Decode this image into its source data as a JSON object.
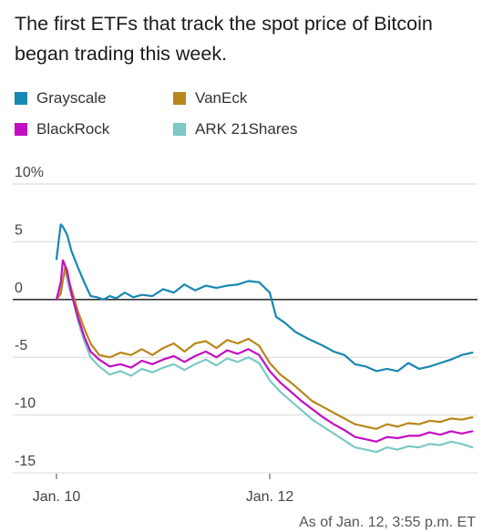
{
  "title": "The first ETFs that track the spot price of Bitcoin began trading this week.",
  "note": "As of Jan. 12, 3:55 p.m. ET",
  "chart_data": {
    "type": "line",
    "title": "The first ETFs that track the spot price of Bitcoin began trading this week.",
    "xlabel": "",
    "ylabel": "",
    "ylim": [
      -15,
      10
    ],
    "y_ticks": [
      {
        "value": 10,
        "label": "10%"
      },
      {
        "value": 5,
        "label": "5"
      },
      {
        "value": 0,
        "label": "0"
      },
      {
        "value": -5,
        "label": "-5"
      },
      {
        "value": -10,
        "label": "-10"
      },
      {
        "value": -15,
        "label": "-15"
      }
    ],
    "x_ticks": [
      {
        "value": 0,
        "label": "Jan. 10"
      },
      {
        "value": 1,
        "label": "Jan. 12"
      }
    ],
    "grid": true,
    "legend_position": "top",
    "series": [
      {
        "name": "Grayscale",
        "color": "#1787b3",
        "x": [
          0.0,
          0.01,
          0.02,
          0.03,
          0.05,
          0.07,
          0.1,
          0.13,
          0.16,
          0.19,
          0.22,
          0.25,
          0.28,
          0.32,
          0.36,
          0.4,
          0.45,
          0.5,
          0.55,
          0.6,
          0.65,
          0.7,
          0.75,
          0.8,
          0.85,
          0.9,
          0.95,
          1.0,
          1.03,
          1.07,
          1.12,
          1.18,
          1.25,
          1.3,
          1.35,
          1.4,
          1.45,
          1.5,
          1.55,
          1.6,
          1.65,
          1.7,
          1.75,
          1.8,
          1.85,
          1.9,
          1.95
        ],
        "y": [
          3.5,
          5.0,
          6.5,
          6.3,
          5.6,
          4.2,
          2.8,
          1.5,
          0.3,
          0.2,
          0.0,
          0.3,
          0.1,
          0.6,
          0.2,
          0.4,
          0.3,
          0.9,
          0.6,
          1.3,
          0.8,
          1.2,
          1.0,
          1.2,
          1.3,
          1.6,
          1.5,
          0.6,
          -1.5,
          -2.0,
          -2.8,
          -3.4,
          -4.0,
          -4.5,
          -4.8,
          -5.6,
          -5.8,
          -6.2,
          -6.0,
          -6.2,
          -5.5,
          -6.0,
          -5.8,
          -5.5,
          -5.2,
          -4.8,
          -4.6
        ]
      },
      {
        "name": "VanEck",
        "color": "#b8861a",
        "x": [
          0.0,
          0.02,
          0.04,
          0.06,
          0.08,
          0.1,
          0.13,
          0.16,
          0.2,
          0.25,
          0.3,
          0.35,
          0.4,
          0.45,
          0.5,
          0.55,
          0.6,
          0.65,
          0.7,
          0.75,
          0.8,
          0.85,
          0.9,
          0.95,
          1.0,
          1.05,
          1.1,
          1.15,
          1.2,
          1.25,
          1.3,
          1.35,
          1.4,
          1.45,
          1.5,
          1.55,
          1.6,
          1.65,
          1.7,
          1.75,
          1.8,
          1.85,
          1.9,
          1.95
        ],
        "y": [
          0.0,
          0.5,
          2.8,
          1.5,
          0.3,
          -1.0,
          -2.5,
          -3.8,
          -4.8,
          -5.0,
          -4.6,
          -4.8,
          -4.3,
          -4.8,
          -4.2,
          -3.8,
          -4.5,
          -3.8,
          -3.6,
          -4.2,
          -3.5,
          -3.8,
          -3.4,
          -4.0,
          -5.5,
          -6.5,
          -7.2,
          -8.0,
          -8.8,
          -9.3,
          -9.8,
          -10.3,
          -10.8,
          -11.0,
          -11.2,
          -10.8,
          -11.0,
          -10.7,
          -10.8,
          -10.5,
          -10.6,
          -10.3,
          -10.4,
          -10.2
        ]
      },
      {
        "name": "BlackRock",
        "color": "#c20dc2",
        "x": [
          0.0,
          0.02,
          0.03,
          0.05,
          0.07,
          0.1,
          0.13,
          0.16,
          0.2,
          0.25,
          0.3,
          0.35,
          0.4,
          0.45,
          0.5,
          0.55,
          0.6,
          0.65,
          0.7,
          0.75,
          0.8,
          0.85,
          0.9,
          0.95,
          1.0,
          1.05,
          1.1,
          1.15,
          1.2,
          1.25,
          1.3,
          1.35,
          1.4,
          1.45,
          1.5,
          1.55,
          1.6,
          1.65,
          1.7,
          1.75,
          1.8,
          1.85,
          1.9,
          1.95
        ],
        "y": [
          0.0,
          1.5,
          3.4,
          2.5,
          0.5,
          -1.5,
          -3.2,
          -4.5,
          -5.2,
          -5.8,
          -5.6,
          -5.9,
          -5.3,
          -5.6,
          -5.2,
          -4.9,
          -5.4,
          -4.9,
          -4.5,
          -5.0,
          -4.4,
          -4.7,
          -4.3,
          -4.8,
          -6.2,
          -7.2,
          -8.0,
          -8.8,
          -9.5,
          -10.2,
          -10.8,
          -11.3,
          -11.9,
          -12.1,
          -12.3,
          -11.9,
          -12.0,
          -11.8,
          -11.8,
          -11.5,
          -11.7,
          -11.4,
          -11.6,
          -11.4
        ]
      },
      {
        "name": "ARK 21Shares",
        "color": "#7cc9c5",
        "x": [
          0.0,
          0.02,
          0.04,
          0.06,
          0.08,
          0.1,
          0.13,
          0.16,
          0.2,
          0.25,
          0.3,
          0.35,
          0.4,
          0.45,
          0.5,
          0.55,
          0.6,
          0.65,
          0.7,
          0.75,
          0.8,
          0.85,
          0.9,
          0.95,
          1.0,
          1.05,
          1.1,
          1.15,
          1.2,
          1.25,
          1.3,
          1.35,
          1.4,
          1.45,
          1.5,
          1.55,
          1.6,
          1.65,
          1.7,
          1.75,
          1.8,
          1.85,
          1.9,
          1.95
        ],
        "y": [
          0.0,
          1.0,
          2.5,
          1.0,
          -0.2,
          -1.8,
          -3.6,
          -5.0,
          -5.8,
          -6.5,
          -6.2,
          -6.6,
          -6.0,
          -6.3,
          -5.9,
          -5.6,
          -6.1,
          -5.6,
          -5.2,
          -5.7,
          -5.1,
          -5.4,
          -5.0,
          -5.5,
          -7.0,
          -8.0,
          -8.8,
          -9.6,
          -10.4,
          -11.0,
          -11.6,
          -12.2,
          -12.8,
          -13.0,
          -13.2,
          -12.8,
          -13.0,
          -12.7,
          -12.8,
          -12.5,
          -12.6,
          -12.3,
          -12.5,
          -12.8
        ]
      }
    ]
  }
}
